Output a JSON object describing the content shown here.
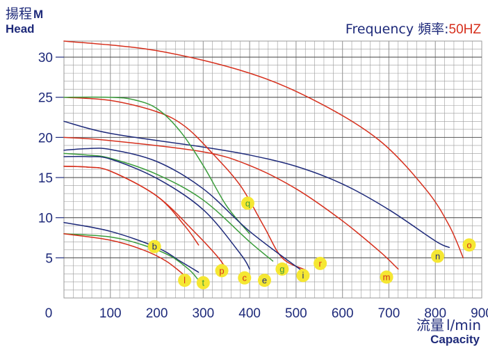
{
  "header": {
    "ylabel_cn": "揚程",
    "ylabel_unit": "M",
    "ylabel_en": "Head",
    "frequency_label": "Frequency 頻率:",
    "frequency_value": "50HZ"
  },
  "footer": {
    "xlabel_cn": "流量",
    "xlabel_unit": "l/min",
    "xlabel_en": "Capacity"
  },
  "colors": {
    "red": "#d62f1c",
    "navy": "#1e2a7a",
    "green": "#3a9c3a",
    "badge": "#f5e732",
    "grid": "#9a9a9a"
  },
  "chart_data": {
    "type": "line",
    "title": "",
    "xlabel": "流量 l/min Capacity",
    "ylabel": "揚程 M Head",
    "xlim": [
      0,
      900
    ],
    "ylim": [
      0,
      32
    ],
    "xticks": [
      0,
      100,
      200,
      300,
      400,
      500,
      600,
      700,
      800,
      900
    ],
    "yticks": [
      5,
      10,
      15,
      20,
      25,
      30
    ],
    "grid": true,
    "series": [
      {
        "name": "o",
        "color": "red",
        "points": [
          [
            0,
            32
          ],
          [
            200,
            30.8
          ],
          [
            400,
            28
          ],
          [
            550,
            24.3
          ],
          [
            680,
            19.6
          ],
          [
            780,
            13.5
          ],
          [
            830,
            9
          ],
          [
            860,
            5
          ]
        ]
      },
      {
        "name": "n",
        "color": "navy",
        "points": [
          [
            0,
            22
          ],
          [
            100,
            20.5
          ],
          [
            300,
            18.8
          ],
          [
            400,
            17.8
          ],
          [
            500,
            16.4
          ],
          [
            600,
            14.2
          ],
          [
            700,
            11
          ],
          [
            800,
            7.1
          ],
          [
            830,
            6.3
          ]
        ]
      },
      {
        "name": "m",
        "color": "red",
        "points": [
          [
            0,
            20
          ],
          [
            100,
            19.6
          ],
          [
            300,
            18.2
          ],
          [
            400,
            16.5
          ],
          [
            500,
            13.6
          ],
          [
            600,
            9.6
          ],
          [
            680,
            5.8
          ],
          [
            720,
            3.6
          ]
        ]
      },
      {
        "name": "r",
        "color": "red",
        "points": [
          [
            0,
            25
          ],
          [
            100,
            24.6
          ],
          [
            200,
            23.2
          ],
          [
            260,
            21.4
          ],
          [
            320,
            18
          ],
          [
            380,
            14
          ],
          [
            430,
            9
          ],
          [
            470,
            5
          ],
          [
            520,
            3.5
          ]
        ]
      },
      {
        "name": "q",
        "color": "green",
        "points": [
          [
            0,
            25
          ],
          [
            100,
            25
          ],
          [
            150,
            24.7
          ],
          [
            200,
            23.6
          ],
          [
            250,
            20.8
          ],
          [
            300,
            16.5
          ],
          [
            350,
            11.5
          ],
          [
            400,
            8
          ]
        ]
      },
      {
        "name": "i",
        "color": "navy",
        "points": [
          [
            0,
            18.4
          ],
          [
            50,
            18.6
          ],
          [
            100,
            18.5
          ],
          [
            200,
            17
          ],
          [
            300,
            13.6
          ],
          [
            400,
            8.3
          ],
          [
            510,
            3.5
          ]
        ]
      },
      {
        "name": "g",
        "color": "green",
        "points": [
          [
            0,
            18
          ],
          [
            50,
            17.8
          ],
          [
            100,
            17.4
          ],
          [
            200,
            15.4
          ],
          [
            300,
            12.2
          ],
          [
            400,
            7
          ],
          [
            450,
            4.6
          ]
        ]
      },
      {
        "name": "e",
        "color": "navy",
        "points": [
          [
            0,
            17.6
          ],
          [
            50,
            17.6
          ],
          [
            100,
            17.3
          ],
          [
            200,
            14.9
          ],
          [
            300,
            11
          ],
          [
            380,
            5.5
          ],
          [
            400,
            3.6
          ]
        ]
      },
      {
        "name": "c",
        "color": "red",
        "points": [
          [
            0,
            16.4
          ],
          [
            50,
            16.3
          ],
          [
            100,
            15.8
          ],
          [
            200,
            12.7
          ],
          [
            280,
            8.3
          ],
          [
            330,
            5.2
          ],
          [
            350,
            3.6
          ]
        ]
      },
      {
        "name": "p",
        "color": "red",
        "points": [
          [
            0,
            16.4
          ],
          [
            50,
            16.3
          ],
          [
            100,
            15.8
          ],
          [
            200,
            12.7
          ],
          [
            260,
            9
          ],
          [
            290,
            6.6
          ]
        ]
      },
      {
        "name": "b",
        "color": "navy",
        "points": [
          [
            0,
            9.4
          ],
          [
            100,
            8.3
          ],
          [
            200,
            6.3
          ],
          [
            250,
            4.6
          ],
          [
            290,
            3.2
          ]
        ]
      },
      {
        "name": "t",
        "color": "green",
        "points": [
          [
            0,
            8
          ],
          [
            100,
            7.6
          ],
          [
            170,
            6.6
          ],
          [
            230,
            5.2
          ],
          [
            270,
            3.5
          ],
          [
            290,
            2.2
          ]
        ]
      },
      {
        "name": "l",
        "color": "red",
        "points": [
          [
            0,
            8
          ],
          [
            100,
            7.2
          ],
          [
            170,
            6
          ],
          [
            220,
            4.6
          ],
          [
            260,
            2.8
          ]
        ]
      }
    ],
    "labels": [
      {
        "text": "o",
        "x": 873,
        "y": 6.6,
        "text_color": "red"
      },
      {
        "text": "n",
        "x": 805,
        "y": 5.2,
        "text_color": "navy"
      },
      {
        "text": "m",
        "x": 695,
        "y": 2.6,
        "text_color": "red"
      },
      {
        "text": "r",
        "x": 552,
        "y": 4.3,
        "text_color": "red"
      },
      {
        "text": "q",
        "x": 396,
        "y": 11.8,
        "text_color": "green"
      },
      {
        "text": "i",
        "x": 515,
        "y": 2.8,
        "text_color": "navy"
      },
      {
        "text": "g",
        "x": 470,
        "y": 3.6,
        "text_color": "green"
      },
      {
        "text": "e",
        "x": 432,
        "y": 2.2,
        "text_color": "navy"
      },
      {
        "text": "c",
        "x": 389,
        "y": 2.5,
        "text_color": "red"
      },
      {
        "text": "p",
        "x": 340,
        "y": 3.4,
        "text_color": "red"
      },
      {
        "text": "b",
        "x": 195,
        "y": 6.4,
        "text_color": "navy"
      },
      {
        "text": "t",
        "x": 300,
        "y": 1.9,
        "text_color": "green"
      },
      {
        "text": "l",
        "x": 260,
        "y": 2.2,
        "text_color": "red"
      }
    ]
  }
}
